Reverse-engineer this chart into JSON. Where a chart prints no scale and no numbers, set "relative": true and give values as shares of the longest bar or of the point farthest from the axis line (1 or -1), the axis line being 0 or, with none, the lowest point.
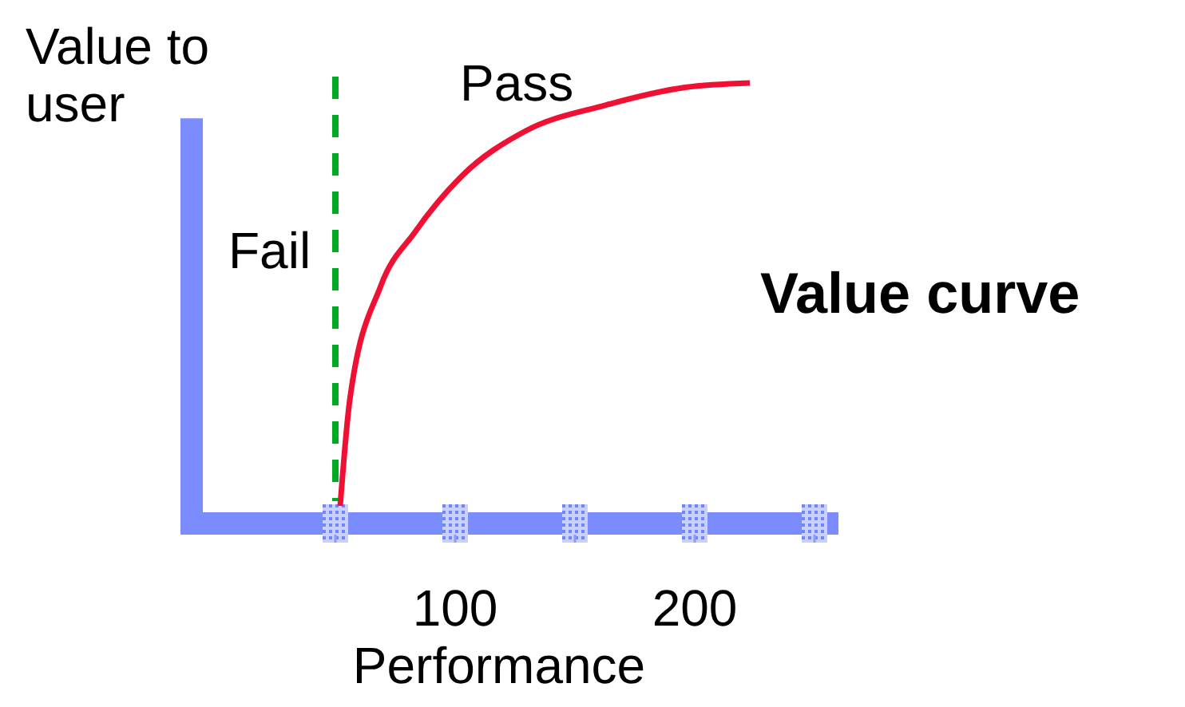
{
  "chart_data": {
    "type": "line",
    "title": "Value curve",
    "xlabel": "Performance",
    "ylabel": "Value to user",
    "relative": true,
    "x": [
      52,
      56,
      69,
      83,
      103,
      129,
      163,
      196,
      223
    ],
    "series": [
      {
        "color": "#ee1133",
        "values": [
          0.04,
          0.28,
          0.54,
          0.66,
          0.79,
          0.89,
          0.95,
          0.99,
          1
        ]
      }
    ],
    "xlim": [
      -10,
      260
    ],
    "xticks": [
      {
        "value": 50,
        "label": null
      },
      100,
      {
        "value": 150,
        "label": null
      },
      200,
      {
        "value": 250,
        "label": null
      }
    ],
    "ref_lines": [
      {
        "axis": "x",
        "value": 50,
        "color": "#00aa22",
        "line_style": "dashed"
      }
    ],
    "annotations": [
      "Fail",
      "Pass"
    ]
  }
}
